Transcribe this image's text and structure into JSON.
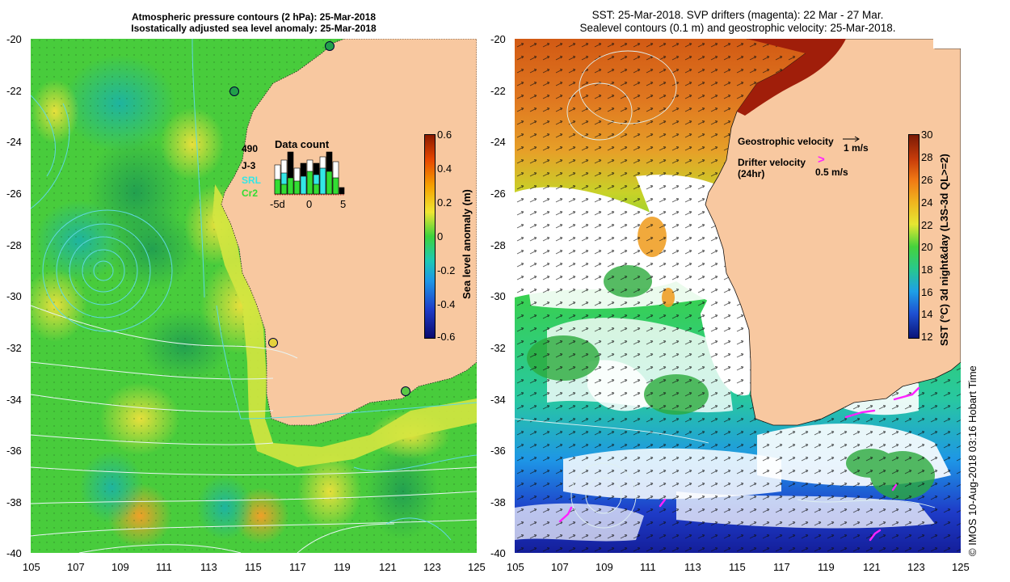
{
  "left_panel": {
    "title_line1": "Atmospheric pressure contours (2 hPa): 25-Mar-2018",
    "title_line2": "Isostatically adjusted sea level anomaly: 25-Mar-2018",
    "colorbar": {
      "label": "Sea level anomaly (m)",
      "ticks": [
        "0.6",
        "0.4",
        "0.2",
        "0",
        "-0.2",
        "-0.4",
        "-0.6"
      ]
    },
    "data_count": {
      "title": "Data count",
      "legend": [
        "490",
        "J-3",
        "SRL",
        "Cr2"
      ],
      "legend_colors": [
        "#000000",
        "#000000",
        "#33e6e6",
        "#33dd33"
      ],
      "axis_ticks": [
        "-5d",
        "0",
        "5"
      ]
    }
  },
  "right_panel": {
    "title_line1": "SST: 25-Mar-2018. SVP drifters (magenta): 22 Mar - 27 Mar.",
    "title_line2": "Sealevel contours (0.1 m) and geostrophic velocity: 25-Mar-2018.",
    "geostrophic_label": "Geostrophic velocity",
    "geostrophic_scale": "1 m/s",
    "drifter_label_1": "Drifter velocity",
    "drifter_label_2": "(24hr)",
    "drifter_scale": "0.5 m/s",
    "drifter_symbol": ">",
    "colorbar": {
      "label": "SST (°C) 3d night&day (L3S-3d QL>=2)",
      "ticks": [
        "30",
        "28",
        "26",
        "24",
        "22",
        "20",
        "18",
        "16",
        "14",
        "12"
      ]
    }
  },
  "axes": {
    "y_ticks": [
      "-20",
      "-22",
      "-24",
      "-26",
      "-28",
      "-30",
      "-32",
      "-34",
      "-36",
      "-38",
      "-40"
    ],
    "x_ticks": [
      "105",
      "107",
      "109",
      "111",
      "113",
      "115",
      "117",
      "119",
      "121",
      "123",
      "125"
    ]
  },
  "credit": "© IMOS 10-Aug-2018 03:16 Hobart Time",
  "colors": {
    "land": "#f8c8a0",
    "sla_green": "#3cd23c",
    "sla_yellow": "#d2e63c",
    "sst_blue": "#1e46c8",
    "drifter": "#ff22ff"
  }
}
